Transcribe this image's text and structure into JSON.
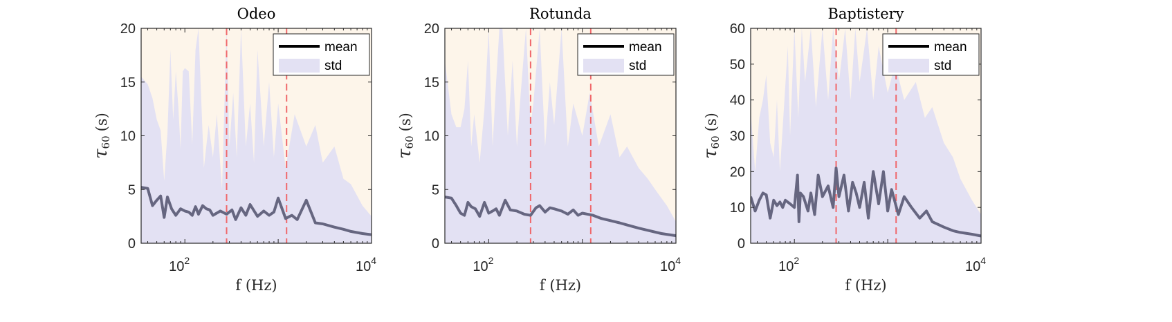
{
  "chart_data": [
    {
      "type": "line",
      "title": "Odeo",
      "xlabel": "f (Hz)",
      "ylabel_main": "τ",
      "ylabel_sub": "60",
      "ylabel_unit": "(s)",
      "xscale": "log",
      "xlim": [
        34,
        10000
      ],
      "ylim": [
        0,
        20
      ],
      "yticks": [
        0,
        5,
        10,
        15,
        20
      ],
      "xticks": [
        {
          "value": 100,
          "base": "10",
          "exp": "2"
        },
        {
          "value": 10000,
          "base": "10",
          "exp": "4"
        }
      ],
      "vlines": [
        280,
        1230
      ],
      "legend": {
        "position": "top-right",
        "entries": [
          "mean",
          "std"
        ]
      },
      "series": [
        {
          "name": "mean",
          "x": [
            34,
            40,
            45,
            50,
            55,
            60,
            65,
            72,
            80,
            90,
            100,
            110,
            120,
            130,
            140,
            155,
            170,
            185,
            200,
            240,
            280,
            320,
            350,
            400,
            450,
            500,
            600,
            700,
            800,
            900,
            1000,
            1200,
            1400,
            1600,
            2000,
            2500,
            3000,
            4000,
            5000,
            6000,
            8000,
            10000
          ],
          "y": [
            5.2,
            5.1,
            3.5,
            4.0,
            4.4,
            2.4,
            4.3,
            3.2,
            2.6,
            3.2,
            3.0,
            2.9,
            2.6,
            3.4,
            2.7,
            3.5,
            3.2,
            3.1,
            2.6,
            3.0,
            2.7,
            3.1,
            2.2,
            3.3,
            2.6,
            3.6,
            2.5,
            3.0,
            2.6,
            2.9,
            4.2,
            2.3,
            2.6,
            2.2,
            4.0,
            1.9,
            1.8,
            1.5,
            1.3,
            1.1,
            0.9,
            0.8
          ]
        },
        {
          "name": "std",
          "x": [
            34,
            40,
            45,
            50,
            55,
            60,
            65,
            70,
            75,
            80,
            85,
            90,
            95,
            100,
            110,
            120,
            130,
            140,
            160,
            180,
            200,
            220,
            250,
            280,
            300,
            330,
            360,
            400,
            450,
            500,
            550,
            600,
            700,
            800,
            900,
            1000,
            1200,
            1500,
            2000,
            2500,
            3000,
            4000,
            5000,
            6000,
            8000,
            10000
          ],
          "y": [
            15.5,
            14.8,
            13.5,
            11.5,
            10.5,
            5.8,
            10.2,
            18.0,
            11.5,
            16.0,
            12.8,
            8.8,
            16.0,
            16.3,
            16.0,
            9.2,
            18.0,
            20.0,
            7.0,
            11.0,
            8.0,
            12.0,
            5.0,
            20.0,
            9.0,
            14.0,
            8.0,
            20.0,
            9.0,
            13.0,
            7.5,
            18.0,
            9.0,
            15.0,
            8.0,
            13.0,
            7.0,
            12.0,
            9.0,
            11.0,
            7.5,
            9.0,
            6.0,
            5.5,
            3.5,
            2.5
          ]
        }
      ]
    },
    {
      "type": "line",
      "title": "Rotunda",
      "xlabel": "f (Hz)",
      "ylabel_main": "τ",
      "ylabel_sub": "60",
      "ylabel_unit": "(s)",
      "xscale": "log",
      "xlim": [
        34,
        10000
      ],
      "ylim": [
        0,
        20
      ],
      "yticks": [
        0,
        5,
        10,
        15,
        20
      ],
      "xticks": [
        {
          "value": 100,
          "base": "10",
          "exp": "2"
        },
        {
          "value": 10000,
          "base": "10",
          "exp": "4"
        }
      ],
      "vlines": [
        280,
        1230
      ],
      "legend": {
        "position": "top-right",
        "entries": [
          "mean",
          "std"
        ]
      },
      "series": [
        {
          "name": "mean",
          "x": [
            34,
            40,
            45,
            50,
            55,
            60,
            65,
            72,
            80,
            90,
            100,
            110,
            120,
            130,
            150,
            170,
            200,
            240,
            280,
            320,
            350,
            400,
            450,
            500,
            600,
            700,
            800,
            900,
            1000,
            1300,
            1600,
            2000,
            2500,
            3000,
            4000,
            5000,
            7000,
            10000
          ],
          "y": [
            4.3,
            4.2,
            3.5,
            2.8,
            2.6,
            3.8,
            3.4,
            3.2,
            2.5,
            3.8,
            2.8,
            3.0,
            3.2,
            2.6,
            4.0,
            3.1,
            3.0,
            2.7,
            2.6,
            3.3,
            3.5,
            2.9,
            3.3,
            3.2,
            3.0,
            2.7,
            3.1,
            2.6,
            2.8,
            2.6,
            2.3,
            2.1,
            1.9,
            1.7,
            1.4,
            1.2,
            0.9,
            0.7
          ]
        },
        {
          "name": "std",
          "x": [
            34,
            40,
            45,
            50,
            55,
            60,
            65,
            70,
            80,
            90,
            100,
            110,
            120,
            130,
            140,
            160,
            180,
            200,
            220,
            250,
            280,
            300,
            350,
            400,
            450,
            500,
            600,
            700,
            800,
            1000,
            1200,
            1500,
            2000,
            2500,
            3000,
            4000,
            5000,
            6000,
            8000,
            10000
          ],
          "y": [
            17.0,
            12.0,
            10.8,
            10.8,
            12.5,
            17.0,
            9.0,
            12.0,
            7.5,
            12.5,
            20.0,
            9.0,
            15.0,
            20.0,
            20.0,
            10.0,
            17.0,
            9.0,
            14.0,
            20.0,
            11.0,
            13.0,
            20.0,
            9.0,
            15.0,
            11.0,
            20.0,
            9.0,
            13.0,
            10.0,
            14.0,
            9.0,
            12.0,
            8.0,
            9.0,
            7.0,
            6.0,
            5.0,
            3.5,
            2.0
          ]
        }
      ]
    },
    {
      "type": "line",
      "title": "Baptistery",
      "xlabel": "f (Hz)",
      "ylabel_main": "τ",
      "ylabel_sub": "60",
      "ylabel_unit": "(s)",
      "xscale": "log",
      "xlim": [
        34,
        10000
      ],
      "ylim": [
        0,
        60
      ],
      "yticks": [
        0,
        10,
        20,
        30,
        40,
        50,
        60
      ],
      "xticks": [
        {
          "value": 100,
          "base": "10",
          "exp": "2"
        },
        {
          "value": 10000,
          "base": "10",
          "exp": "4"
        }
      ],
      "vlines": [
        280,
        1230
      ],
      "legend": {
        "position": "top-right",
        "entries": [
          "mean",
          "std"
        ]
      },
      "series": [
        {
          "name": "mean",
          "x": [
            34,
            38,
            42,
            46,
            50,
            55,
            60,
            65,
            70,
            75,
            80,
            90,
            100,
            108,
            112,
            116,
            125,
            140,
            150,
            165,
            180,
            200,
            230,
            260,
            280,
            300,
            340,
            380,
            420,
            460,
            500,
            560,
            620,
            700,
            800,
            900,
            1000,
            1100,
            1300,
            1500,
            1800,
            2200,
            2600,
            3000,
            4000,
            5000,
            6000,
            8000,
            10000
          ],
          "y": [
            13,
            9,
            12,
            14,
            13.5,
            7,
            12,
            10.5,
            11.5,
            10,
            12,
            11,
            10,
            19,
            6,
            14,
            13,
            9,
            14,
            8,
            19,
            13,
            16,
            10,
            21,
            13,
            19,
            9,
            17,
            14,
            10,
            17,
            7,
            20,
            11,
            20,
            9,
            15,
            8,
            13,
            10,
            7,
            9,
            6,
            4.5,
            3.5,
            3,
            2.5,
            2
          ]
        },
        {
          "name": "std",
          "x": [
            34,
            38,
            42,
            46,
            50,
            55,
            60,
            65,
            70,
            80,
            85,
            90,
            100,
            110,
            120,
            130,
            150,
            170,
            200,
            230,
            260,
            300,
            350,
            400,
            450,
            500,
            600,
            700,
            800,
            1000,
            1200,
            1500,
            2000,
            2500,
            3000,
            4000,
            5000,
            6000,
            8000,
            10000
          ],
          "y": [
            37,
            20,
            35,
            40,
            47,
            28,
            24,
            40,
            20,
            44,
            55,
            30,
            60,
            35,
            60,
            45,
            60,
            38,
            60,
            40,
            60,
            45,
            60,
            40,
            60,
            45,
            60,
            40,
            55,
            42,
            50,
            40,
            45,
            35,
            38,
            28,
            24,
            18,
            12,
            8
          ]
        }
      ]
    }
  ]
}
